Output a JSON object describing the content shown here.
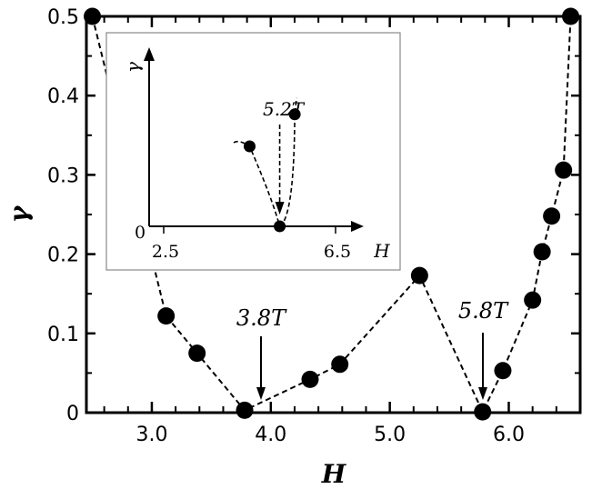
{
  "chart_data": [
    {
      "type": "line",
      "title": "",
      "xlabel": "H",
      "ylabel": "γ",
      "xlim": [
        2.45,
        6.6
      ],
      "ylim": [
        0,
        0.5
      ],
      "x_ticks": [
        "3.0",
        "4.0",
        "5.0",
        "6.0"
      ],
      "y_ticks": [
        "0",
        "0.1",
        "0.2",
        "0.3",
        "0.4",
        "0.5"
      ],
      "grid": false,
      "line_style": "dashed",
      "marker": "filled-circle",
      "series": [
        {
          "x": [
            2.5,
            3.12,
            3.38,
            3.78,
            4.33,
            4.58,
            5.25,
            5.78,
            5.95,
            6.2,
            6.28,
            6.36,
            6.46,
            6.52
          ],
          "y": [
            0.5,
            0.122,
            0.075,
            0.003,
            0.042,
            0.061,
            0.173,
            0.001,
            0.053,
            0.142,
            0.203,
            0.248,
            0.306,
            0.5
          ]
        }
      ],
      "annotations": [
        {
          "text": "3.8T",
          "x": 3.8,
          "y": 0.003
        },
        {
          "text": "5.8T",
          "x": 5.77,
          "y": 0.001
        }
      ]
    },
    {
      "type": "line",
      "title": "",
      "inset": true,
      "xlabel": "H",
      "ylabel": "γ",
      "xlim": [
        2.2,
        7.1
      ],
      "x_ticks": [
        "2.5",
        "6.5"
      ],
      "y_ticks": [
        "0"
      ],
      "line_style": "dashed",
      "marker": "filled-circle",
      "points": [
        {
          "x": 4.5,
          "y": 0.2
        },
        {
          "x": 5.2,
          "y": 0.0
        },
        {
          "x": 5.55,
          "y": 0.28
        }
      ],
      "annotations": [
        {
          "text": "5.2T",
          "x": 5.2,
          "y": 0.0
        }
      ]
    }
  ]
}
